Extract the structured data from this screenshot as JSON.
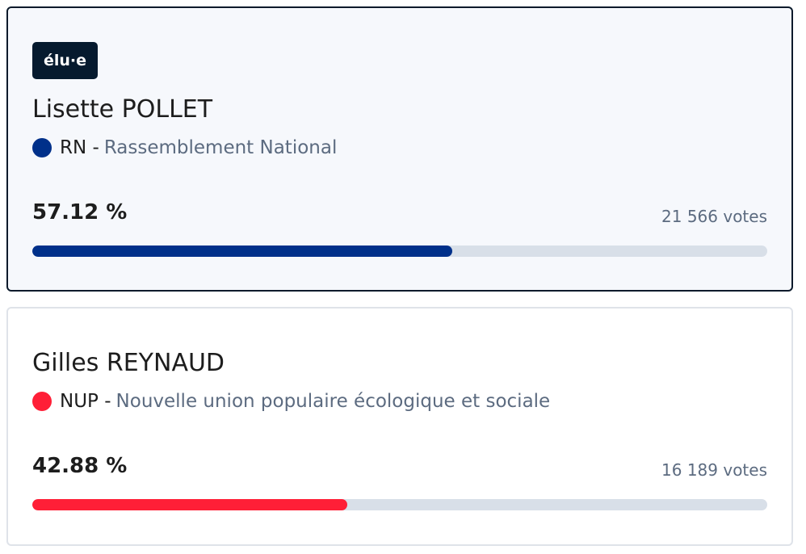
{
  "candidates": [
    {
      "badge": "élu·e",
      "name": "Lisette POLLET",
      "party_code": "RN",
      "separator": "-",
      "party_name": "Rassemblement National",
      "percent_label": "57.12 %",
      "percent": 57.12,
      "votes": "21 566 votes",
      "color": "#00308a"
    },
    {
      "name": "Gilles REYNAUD",
      "party_code": "NUP",
      "separator": "-",
      "party_name": "Nouvelle union populaire écologique et sociale",
      "percent_label": "42.88 %",
      "percent": 42.88,
      "votes": "16 189 votes",
      "color": "#ff1f37"
    }
  ]
}
